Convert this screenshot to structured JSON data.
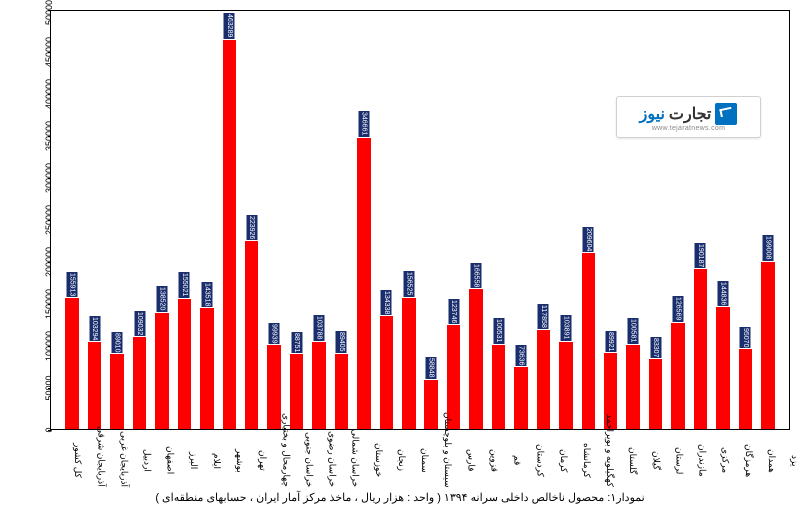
{
  "chart": {
    "type": "bar",
    "ylim": [
      0,
      500000
    ],
    "ytick_step": 50000,
    "yticks": [
      0,
      50000,
      100000,
      150000,
      200000,
      250000,
      300000,
      350000,
      400000,
      450000,
      500000
    ],
    "bar_color": "#ff0000",
    "label_bg_color": "#1a2e6e",
    "label_text_color": "#ffffff",
    "background_color": "#ffffff",
    "border_color": "#000000",
    "bar_width": 0.6,
    "font_family": "Tahoma",
    "axis_fontsize": 9,
    "datalabel_fontsize": 7,
    "categories": [
      "کل کشور",
      "آذربایجان شرقی",
      "آذربایجان غربی",
      "اردبیل",
      "اصفهان",
      "البرز",
      "ایلام",
      "بوشهر",
      "تهران",
      "چهارمحال و بختیاری",
      "خراسان جنوبی",
      "خراسان رضوی",
      "خراسان شمالی",
      "خوزستان",
      "زنجان",
      "سمنان",
      "سیستان و بلوچستان",
      "فارس",
      "قزوین",
      "قم",
      "کردستان",
      "کرمان",
      "کرمانشاه",
      "کهگیلویه و بویراحمد",
      "گلستان",
      "گیلان",
      "لرستان",
      "مازندران",
      "مرکزی",
      "هرمزگان",
      "همدان",
      "یزد"
    ],
    "values": [
      155913,
      103294,
      89010,
      109032,
      138520,
      155021,
      143518,
      463289,
      223926,
      99939,
      88751,
      103788,
      89405,
      346661,
      134338,
      156525,
      58848,
      123746,
      166558,
      100531,
      73636,
      117858,
      103891,
      209604,
      89921,
      100581,
      83307,
      126569,
      190187,
      144836,
      95070,
      199008
    ]
  },
  "caption": "نمودار۱: محصول ناخالص داخلی سرانه ۱۳۹۴ ( واحد : هزار ریال ، ماخذ مرکز آمار ایران ، حسابهای منطقه‌ای )",
  "logo": {
    "brand_news": "نیوز",
    "brand_tejarat": "تجارت",
    "url": "www.tejaratnews.com"
  }
}
